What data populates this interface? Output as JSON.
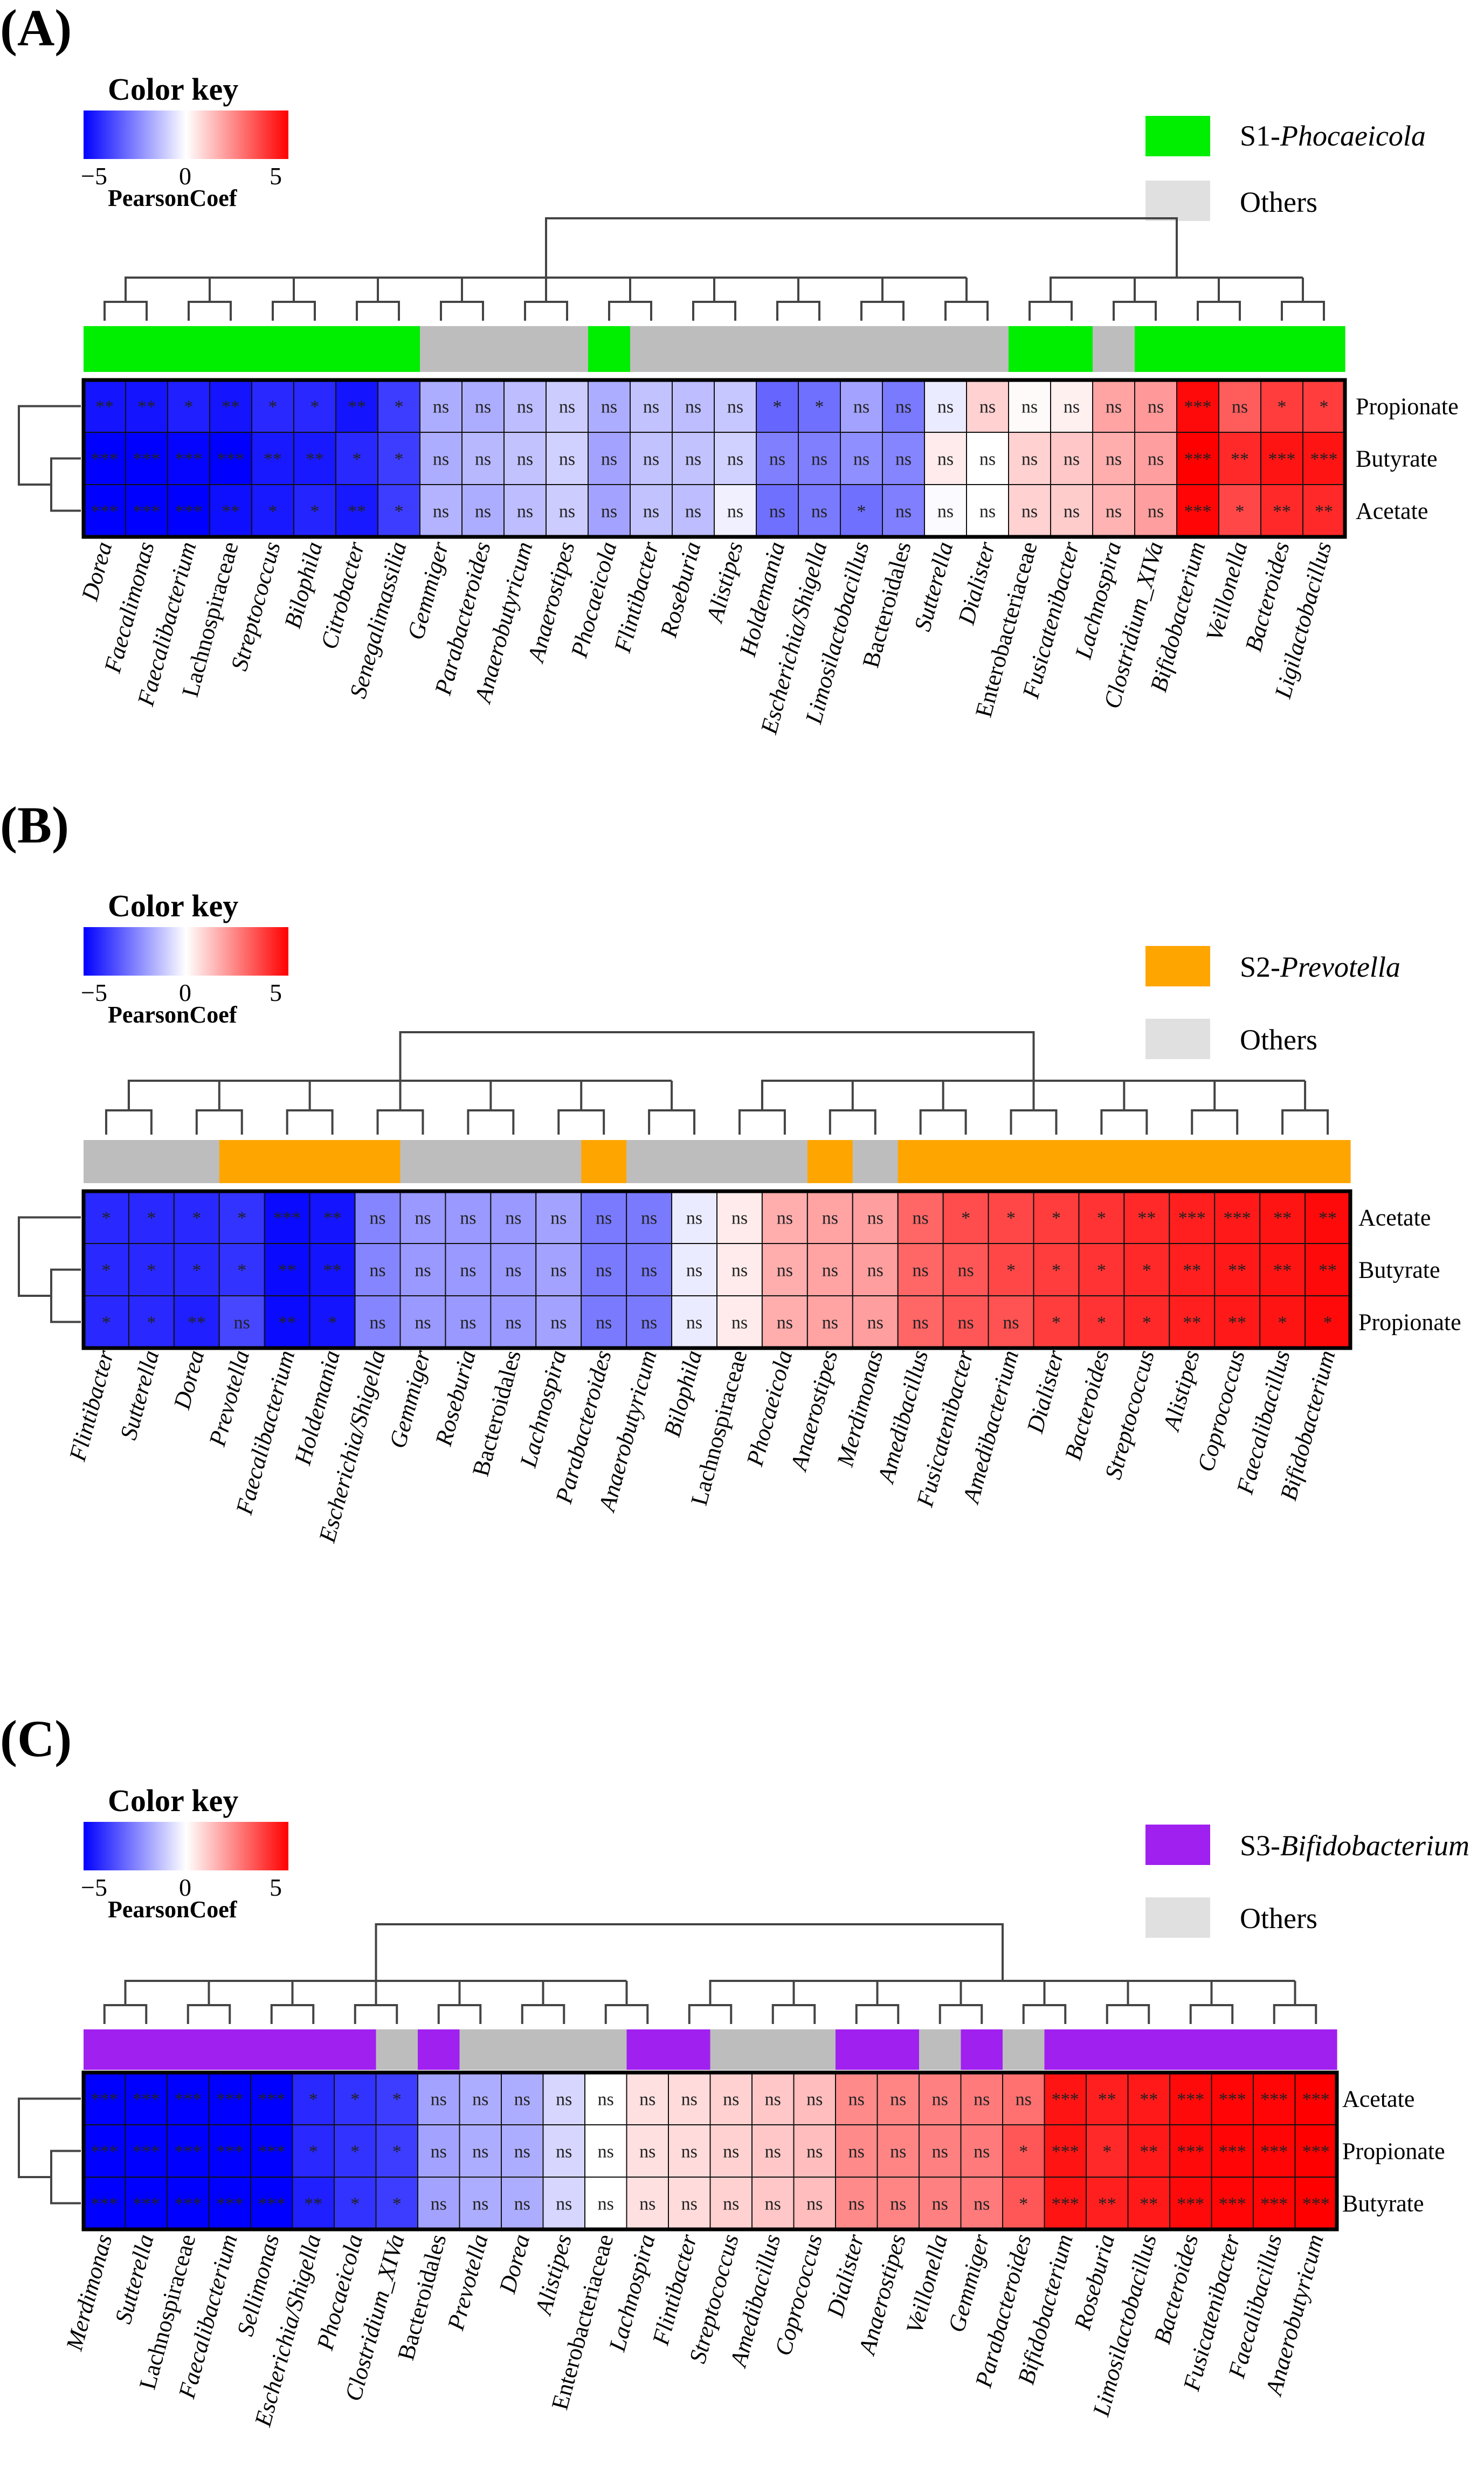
{
  "chart_data": [
    {
      "type": "heatmap",
      "panel": "(A)",
      "color_key": {
        "title": "Color key",
        "ticks": [
          "−5",
          "0",
          "5"
        ],
        "sublabel": "PearsonCoef",
        "range": [
          -5,
          5
        ]
      },
      "legend": [
        {
          "prefix": "S1-",
          "name": "Phocaeicola",
          "color": "#00ee00"
        },
        {
          "prefix": "",
          "name": "Others",
          "color": "#e0e0e0"
        }
      ],
      "rows": [
        "Propionate",
        "Butyrate",
        "Acetate"
      ],
      "columns": [
        "Dorea",
        "Faecalimonas",
        "Faecalibacterium",
        "Lachnospiraceae",
        "Streptococcus",
        "Bilophila",
        "Citrobacter",
        "Senegalimassilia",
        "Gemmiger",
        "Parabacteroides",
        "Anaerobutyricum",
        "Anaerostipes",
        "Phocaeicola",
        "Flintibacter",
        "Roseburia",
        "Alistipes",
        "Holdemania",
        "Escherichia/Shigella",
        "Limosilactobacillus",
        "Bacteroidales",
        "Sutterella",
        "Dialister",
        "Enterobacteriaceae",
        "Fusicatenibacter",
        "Lachnospira",
        "Clostridium_XIVa",
        "Bifidobacterium",
        "Veillonella",
        "Bacteroides",
        "Ligilactobacillus"
      ],
      "italic": [
        1,
        1,
        1,
        0,
        1,
        1,
        1,
        1,
        1,
        1,
        1,
        1,
        1,
        1,
        1,
        1,
        1,
        1,
        1,
        0,
        1,
        1,
        0,
        1,
        1,
        1,
        1,
        1,
        1,
        1
      ],
      "group_colors": [
        "#00ee00",
        "#00ee00",
        "#00ee00",
        "#00ee00",
        "#00ee00",
        "#00ee00",
        "#00ee00",
        "#00ee00",
        "#bdbdbd",
        "#bdbdbd",
        "#bdbdbd",
        "#bdbdbd",
        "#00ee00",
        "#bdbdbd",
        "#bdbdbd",
        "#bdbdbd",
        "#bdbdbd",
        "#bdbdbd",
        "#bdbdbd",
        "#bdbdbd",
        "#bdbdbd",
        "#bdbdbd",
        "#00ee00",
        "#00ee00",
        "#bdbdbd",
        "#00ee00",
        "#00ee00",
        "#00ee00",
        "#00ee00",
        "#00ee00"
      ],
      "values": [
        [
          -4.6,
          -4.6,
          -4.4,
          -4.6,
          -4.2,
          -4.2,
          -4.6,
          -3.8,
          -1.6,
          -1.6,
          -1.3,
          -1.0,
          -1.6,
          -1.2,
          -1.3,
          -1.1,
          -3.0,
          -2.8,
          -1.8,
          -2.6,
          -0.4,
          0.9,
          0.1,
          0.3,
          1.8,
          2.0,
          4.8,
          3.2,
          3.8,
          3.8
        ],
        [
          -5.0,
          -5.0,
          -4.9,
          -5.0,
          -4.5,
          -4.5,
          -4.2,
          -3.8,
          -1.6,
          -1.4,
          -1.2,
          -0.9,
          -1.8,
          -1.2,
          -1.2,
          -0.9,
          -2.5,
          -2.5,
          -2.2,
          -2.4,
          0.4,
          0.0,
          0.9,
          1.1,
          1.6,
          1.9,
          5.0,
          4.2,
          4.6,
          4.6
        ],
        [
          -5.0,
          -5.0,
          -5.0,
          -4.7,
          -4.5,
          -4.3,
          -4.5,
          -3.8,
          -1.5,
          -1.6,
          -1.3,
          -1.0,
          -1.8,
          -1.2,
          -1.3,
          -0.3,
          -2.8,
          -2.6,
          -2.8,
          -2.5,
          -0.1,
          0.0,
          0.9,
          1.0,
          1.5,
          1.9,
          4.9,
          3.6,
          4.2,
          4.2
        ]
      ],
      "annotations": [
        [
          "**",
          "**",
          "*",
          "**",
          "*",
          "*",
          "**",
          "*",
          "ns",
          "ns",
          "ns",
          "ns",
          "ns",
          "ns",
          "ns",
          "ns",
          "*",
          "*",
          "ns",
          "ns",
          "ns",
          "ns",
          "ns",
          "ns",
          "ns",
          "ns",
          "***",
          "ns",
          "*",
          "*"
        ],
        [
          "***",
          "***",
          "***",
          "***",
          "**",
          "**",
          "*",
          "*",
          "ns",
          "ns",
          "ns",
          "ns",
          "ns",
          "ns",
          "ns",
          "ns",
          "ns",
          "ns",
          "ns",
          "ns",
          "ns",
          "ns",
          "ns",
          "ns",
          "ns",
          "ns",
          "***",
          "**",
          "***",
          "***"
        ],
        [
          "***",
          "***",
          "***",
          "**",
          "*",
          "*",
          "**",
          "*",
          "ns",
          "ns",
          "ns",
          "ns",
          "ns",
          "ns",
          "ns",
          "ns",
          "ns",
          "ns",
          "*",
          "ns",
          "ns",
          "ns",
          "ns",
          "ns",
          "ns",
          "ns",
          "***",
          "*",
          "**",
          "**"
        ]
      ]
    },
    {
      "type": "heatmap",
      "panel": "(B)",
      "color_key": {
        "title": "Color key",
        "ticks": [
          "−5",
          "0",
          "5"
        ],
        "sublabel": "PearsonCoef",
        "range": [
          -5,
          5
        ]
      },
      "legend": [
        {
          "prefix": "S2-",
          "name": "Prevotella",
          "color": "#ffa500"
        },
        {
          "prefix": "",
          "name": "Others",
          "color": "#e0e0e0"
        }
      ],
      "rows": [
        "Acetate",
        "Butyrate",
        "Propionate"
      ],
      "columns": [
        "Flintibacter",
        "Sutterella",
        "Dorea",
        "Prevotella",
        "Faecalibacterium",
        "Holdemania",
        "Escherichia/Shigella",
        "Gemmiger",
        "Roseburia",
        "Bacteroidales",
        "Lachnospira",
        "Parabacteroides",
        "Anaerobutyricum",
        "Bilophila",
        "Lachnospiraceae",
        "Phocaeicola",
        "Anaerostipes",
        "Merdimonas",
        "Amedibacillus",
        "Fusicatenibacter",
        "Amedibacterium",
        "Dialister",
        "Bacteroides",
        "Streptococcus",
        "Alistipes",
        "Coprococcus",
        "Faecalibacillus",
        "Bifidobacterium"
      ],
      "italic": [
        1,
        1,
        1,
        1,
        1,
        1,
        1,
        1,
        1,
        0,
        1,
        1,
        1,
        1,
        0,
        1,
        1,
        1,
        1,
        1,
        1,
        1,
        1,
        1,
        1,
        1,
        1,
        1
      ],
      "group_colors": [
        "#bdbdbd",
        "#bdbdbd",
        "#bdbdbd",
        "#ffa500",
        "#ffa500",
        "#ffa500",
        "#ffa500",
        "#bdbdbd",
        "#bdbdbd",
        "#bdbdbd",
        "#bdbdbd",
        "#ffa500",
        "#bdbdbd",
        "#bdbdbd",
        "#bdbdbd",
        "#bdbdbd",
        "#ffa500",
        "#bdbdbd",
        "#ffa500",
        "#ffa500",
        "#ffa500",
        "#ffa500",
        "#ffa500",
        "#ffa500",
        "#ffa500",
        "#ffa500",
        "#ffa500",
        "#ffa500"
      ],
      "values": [
        [
          -4.2,
          -4.2,
          -4.2,
          -4.0,
          -4.8,
          -4.6,
          -2.4,
          -2.0,
          -2.0,
          -2.0,
          -1.8,
          -2.6,
          -2.6,
          -0.4,
          0.4,
          1.6,
          1.8,
          1.9,
          3.0,
          3.5,
          3.6,
          3.8,
          4.0,
          4.2,
          4.4,
          4.5,
          4.6,
          4.8
        ],
        [
          -4.2,
          -4.2,
          -4.2,
          -4.0,
          -4.8,
          -4.6,
          -2.4,
          -2.0,
          -2.0,
          -2.0,
          -1.8,
          -2.6,
          -2.6,
          -0.4,
          0.4,
          1.6,
          1.8,
          1.9,
          3.0,
          3.3,
          3.6,
          3.8,
          4.0,
          4.2,
          4.4,
          4.5,
          4.6,
          4.8
        ],
        [
          -4.2,
          -4.2,
          -4.4,
          -3.6,
          -4.8,
          -4.6,
          -2.4,
          -2.0,
          -2.0,
          -2.0,
          -1.8,
          -2.6,
          -2.6,
          -0.4,
          0.4,
          1.6,
          1.8,
          1.9,
          3.0,
          3.3,
          3.4,
          3.8,
          4.0,
          4.2,
          4.4,
          4.5,
          4.6,
          4.8
        ]
      ],
      "annotations": [
        [
          "*",
          "*",
          "*",
          "*",
          "***",
          "**",
          "ns",
          "ns",
          "ns",
          "ns",
          "ns",
          "ns",
          "ns",
          "ns",
          "ns",
          "ns",
          "ns",
          "ns",
          "ns",
          "*",
          "*",
          "*",
          "*",
          "**",
          "***",
          "***",
          "**",
          "**"
        ],
        [
          "*",
          "*",
          "*",
          "*",
          "**",
          "**",
          "ns",
          "ns",
          "ns",
          "ns",
          "ns",
          "ns",
          "ns",
          "ns",
          "ns",
          "ns",
          "ns",
          "ns",
          "ns",
          "ns",
          "*",
          "*",
          "*",
          "*",
          "**",
          "**",
          "**",
          "**"
        ],
        [
          "*",
          "*",
          "**",
          "ns",
          "**",
          "*",
          "ns",
          "ns",
          "ns",
          "ns",
          "ns",
          "ns",
          "ns",
          "ns",
          "ns",
          "ns",
          "ns",
          "ns",
          "ns",
          "ns",
          "ns",
          "*",
          "*",
          "*",
          "**",
          "**",
          "*",
          "*"
        ]
      ]
    },
    {
      "type": "heatmap",
      "panel": "(C)",
      "color_key": {
        "title": "Color key",
        "ticks": [
          "−5",
          "0",
          "5"
        ],
        "sublabel": "PearsonCoef",
        "range": [
          -5,
          5
        ]
      },
      "legend": [
        {
          "prefix": "S3-",
          "name": "Bifidobacterium",
          "color": "#a020f0"
        },
        {
          "prefix": "",
          "name": "Others",
          "color": "#e0e0e0"
        }
      ],
      "rows": [
        "Acetate",
        "Propionate",
        "Butyrate"
      ],
      "columns": [
        "Merdimonas",
        "Sutterella",
        "Lachnospiraceae",
        "Faecalibacterium",
        "Sellimonas",
        "Escherichia/Shigella",
        "Phocaeicola",
        "Clostridium_XIVa",
        "Bacteroidales",
        "Prevotella",
        "Dorea",
        "Alistipes",
        "Enterobacteriaceae",
        "Lachnospira",
        "Flintibacter",
        "Streptococcus",
        "Amedibacillus",
        "Coprococcus",
        "Dialister",
        "Anaerostipes",
        "Veillonella",
        "Gemmiger",
        "Parabacteroides",
        "Bifidobacterium",
        "Roseburia",
        "Limosilactobacillus",
        "Bacteroides",
        "Fusicatenibacter",
        "Faecalibacillus",
        "Anaerobutyricum"
      ],
      "italic": [
        1,
        1,
        0,
        1,
        1,
        1,
        1,
        1,
        0,
        1,
        1,
        1,
        0,
        1,
        1,
        1,
        1,
        1,
        1,
        1,
        1,
        1,
        1,
        1,
        1,
        1,
        1,
        1,
        1,
        1
      ],
      "group_colors": [
        "#a020f0",
        "#a020f0",
        "#a020f0",
        "#a020f0",
        "#a020f0",
        "#a020f0",
        "#a020f0",
        "#bdbdbd",
        "#a020f0",
        "#bdbdbd",
        "#bdbdbd",
        "#bdbdbd",
        "#bdbdbd",
        "#a020f0",
        "#a020f0",
        "#bdbdbd",
        "#bdbdbd",
        "#bdbdbd",
        "#a020f0",
        "#a020f0",
        "#bdbdbd",
        "#a020f0",
        "#bdbdbd",
        "#a020f0",
        "#a020f0",
        "#a020f0",
        "#a020f0",
        "#a020f0",
        "#a020f0",
        "#a020f0"
      ],
      "values": [
        [
          -5.0,
          -5.0,
          -5.0,
          -5.0,
          -5.0,
          -4.2,
          -4.0,
          -3.8,
          -1.8,
          -1.6,
          -1.6,
          -0.8,
          0.0,
          0.6,
          0.7,
          0.9,
          1.1,
          1.3,
          2.3,
          2.4,
          2.5,
          2.6,
          2.8,
          4.6,
          4.4,
          4.5,
          4.8,
          4.9,
          4.9,
          5.0
        ],
        [
          -5.0,
          -5.0,
          -5.0,
          -5.0,
          -5.0,
          -4.2,
          -4.0,
          -3.8,
          -1.8,
          -1.6,
          -1.6,
          -0.8,
          0.0,
          0.6,
          0.7,
          0.9,
          1.1,
          1.3,
          2.3,
          2.4,
          2.5,
          2.6,
          3.3,
          4.6,
          4.2,
          4.5,
          4.8,
          4.9,
          4.9,
          5.0
        ],
        [
          -5.0,
          -5.0,
          -5.0,
          -5.0,
          -5.0,
          -4.4,
          -4.0,
          -3.8,
          -1.8,
          -1.6,
          -1.6,
          -0.8,
          0.0,
          0.6,
          0.7,
          0.9,
          1.1,
          1.3,
          2.3,
          2.4,
          2.5,
          2.6,
          3.3,
          4.6,
          4.4,
          4.5,
          4.8,
          4.9,
          4.9,
          5.0
        ]
      ],
      "annotations": [
        [
          "***",
          "***",
          "***",
          "***",
          "***",
          "*",
          "*",
          "*",
          "ns",
          "ns",
          "ns",
          "ns",
          "ns",
          "ns",
          "ns",
          "ns",
          "ns",
          "ns",
          "ns",
          "ns",
          "ns",
          "ns",
          "ns",
          "***",
          "**",
          "**",
          "***",
          "***",
          "***",
          "***"
        ],
        [
          "***",
          "***",
          "***",
          "***",
          "***",
          "*",
          "*",
          "*",
          "ns",
          "ns",
          "ns",
          "ns",
          "ns",
          "ns",
          "ns",
          "ns",
          "ns",
          "ns",
          "ns",
          "ns",
          "ns",
          "ns",
          "*",
          "***",
          "*",
          "**",
          "***",
          "***",
          "***",
          "***"
        ],
        [
          "***",
          "***",
          "***",
          "***",
          "***",
          "**",
          "*",
          "*",
          "ns",
          "ns",
          "ns",
          "ns",
          "ns",
          "ns",
          "ns",
          "ns",
          "ns",
          "ns",
          "ns",
          "ns",
          "ns",
          "ns",
          "*",
          "***",
          "**",
          "**",
          "***",
          "***",
          "***",
          "***"
        ]
      ]
    }
  ]
}
